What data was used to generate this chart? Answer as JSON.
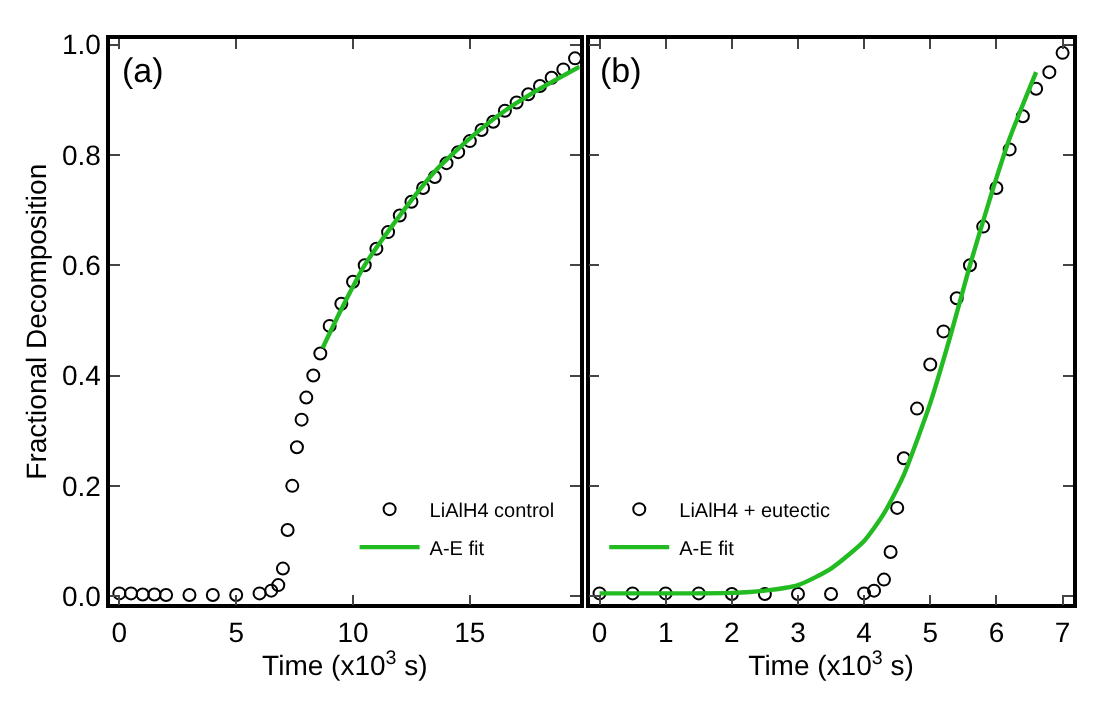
{
  "chart_data": [
    {
      "type": "scatter",
      "title": "(a)",
      "xlabel": "Time (x10$^{3}$ s)",
      "ylabel": "Fractional Decomposition",
      "xlim": [
        -0.4,
        19.7
      ],
      "xticks": [
        0,
        5,
        10,
        15
      ],
      "ylim": [
        -0.015,
        1.01
      ],
      "yticks": [
        {
          "value": 0,
          "label": "0.0"
        },
        0.2,
        0.4,
        0.6,
        0.8,
        {
          "value": 1,
          "label": "1.0"
        }
      ],
      "legend": "bottom right",
      "grid": false,
      "series": [
        {
          "name": "LiAlH4 control",
          "marker": "circle",
          "color": "#000000",
          "x": [
            0,
            0.5,
            1,
            1.5,
            2,
            3,
            4,
            5,
            6,
            6.5,
            6.8,
            7.0,
            7.2,
            7.4,
            7.6,
            7.8,
            8.0,
            8.3,
            8.6,
            9,
            9.5,
            10,
            10.5,
            11,
            11.5,
            12,
            12.5,
            13,
            13.5,
            14,
            14.5,
            15,
            15.5,
            16,
            16.5,
            17,
            17.5,
            18,
            18.5,
            19,
            19.5
          ],
          "values": [
            0.005,
            0.005,
            0.003,
            0.003,
            0.002,
            0.002,
            0.002,
            0.002,
            0.005,
            0.01,
            0.02,
            0.05,
            0.12,
            0.2,
            0.27,
            0.32,
            0.36,
            0.4,
            0.44,
            0.49,
            0.53,
            0.57,
            0.6,
            0.63,
            0.66,
            0.69,
            0.715,
            0.74,
            0.76,
            0.785,
            0.805,
            0.825,
            0.845,
            0.86,
            0.88,
            0.895,
            0.91,
            0.925,
            0.94,
            0.955,
            0.975
          ]
        },
        {
          "name": "A-E fit",
          "type": "line",
          "marker": "none",
          "color": "#22bb22",
          "x": [
            8.7,
            9.5,
            10.5,
            12,
            13.5,
            15,
            16.5,
            18,
            19.7
          ],
          "values": [
            0.45,
            0.52,
            0.6,
            0.69,
            0.77,
            0.83,
            0.88,
            0.92,
            0.96
          ]
        }
      ]
    },
    {
      "type": "scatter",
      "title": "(b)",
      "xlabel": "Time (x10$^{3}$ s)",
      "xlim": [
        -0.15,
        7.15
      ],
      "xticks": [
        0,
        1,
        2,
        3,
        4,
        5,
        6,
        7
      ],
      "ylim": [
        -0.015,
        1.01
      ],
      "yticks": [
        0.0,
        0.2,
        0.4,
        0.6,
        0.8,
        1.0
      ],
      "tick_labels": "x",
      "legend": "bottom left",
      "grid": false,
      "series": [
        {
          "name": "LiAlH4 + eutectic",
          "marker": "circle",
          "color": "#000000",
          "x": [
            0,
            0.5,
            1,
            1.5,
            2,
            2.5,
            3,
            3.5,
            4.0,
            4.15,
            4.3,
            4.4,
            4.5,
            4.6,
            4.8,
            5.0,
            5.2,
            5.4,
            5.6,
            5.8,
            6.0,
            6.2,
            6.4,
            6.6,
            6.8,
            7.0
          ],
          "values": [
            0.005,
            0.005,
            0.005,
            0.005,
            0.004,
            0.004,
            0.004,
            0.004,
            0.005,
            0.01,
            0.03,
            0.08,
            0.16,
            0.25,
            0.34,
            0.42,
            0.48,
            0.54,
            0.6,
            0.67,
            0.74,
            0.81,
            0.87,
            0.92,
            0.95,
            0.985
          ]
        },
        {
          "name": "A-E fit",
          "type": "line",
          "marker": "none",
          "color": "#22bb22",
          "x": [
            0,
            1,
            2,
            2.5,
            3,
            3.5,
            4.0,
            4.3,
            4.6,
            5.0,
            5.3,
            5.6,
            5.9,
            6.2,
            6.6
          ],
          "values": [
            0.005,
            0.005,
            0.006,
            0.01,
            0.02,
            0.05,
            0.1,
            0.15,
            0.22,
            0.35,
            0.47,
            0.6,
            0.72,
            0.83,
            0.95
          ]
        }
      ]
    }
  ]
}
